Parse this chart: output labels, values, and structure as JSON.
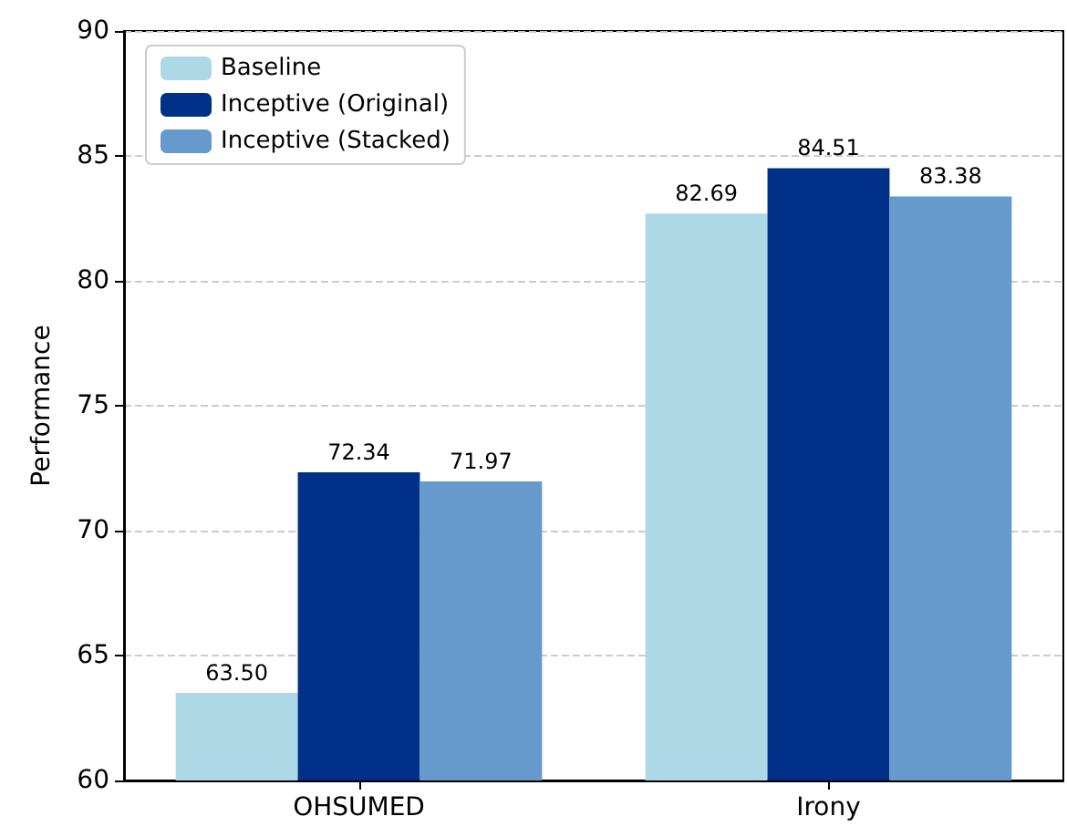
{
  "chart_data": {
    "type": "bar",
    "ylabel": "Performance",
    "categories": [
      "OHSUMED",
      "Irony"
    ],
    "series": [
      {
        "name": "Baseline",
        "color": "#add8e6",
        "values": [
          63.5,
          82.69
        ],
        "value_labels": [
          "63.50",
          "82.69"
        ]
      },
      {
        "name": "Inceptive (Original)",
        "color": "#003087",
        "values": [
          72.34,
          84.51
        ],
        "value_labels": [
          "72.34",
          "84.51"
        ]
      },
      {
        "name": "Inceptive (Stacked)",
        "color": "#6699cc",
        "values": [
          71.97,
          83.38
        ],
        "value_labels": [
          "71.97",
          "83.38"
        ]
      }
    ],
    "ylim": [
      60,
      90
    ],
    "yticks": [
      60,
      65,
      70,
      75,
      80,
      85,
      90
    ],
    "grid": "y",
    "legend": "top left"
  }
}
